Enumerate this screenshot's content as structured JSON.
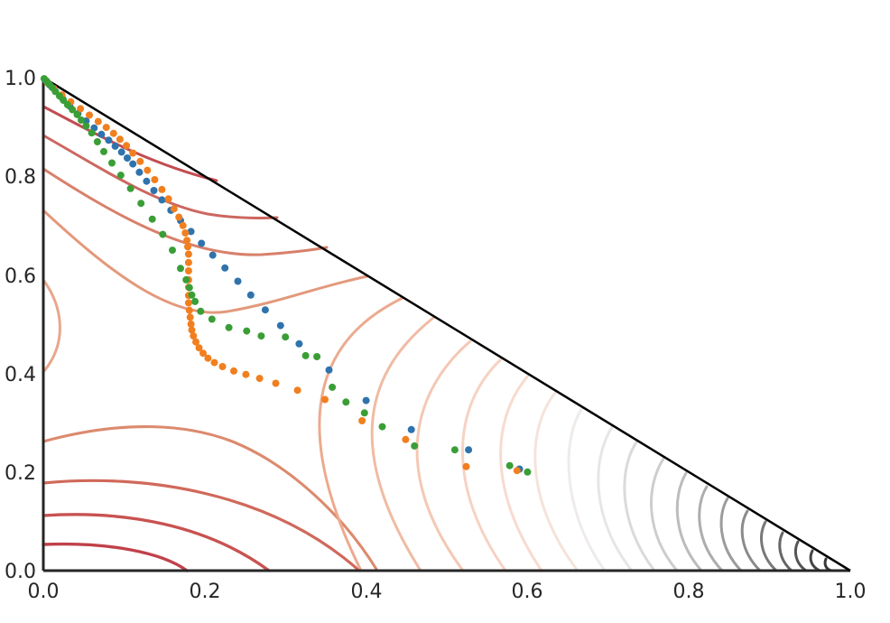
{
  "chart_data": {
    "type": "scatter",
    "title": "",
    "xlabel": "",
    "ylabel": "",
    "xlim": [
      0.0,
      1.0
    ],
    "ylim": [
      0.0,
      1.0
    ],
    "grid": false,
    "legend": "none",
    "x_ticks": [
      "0.0",
      "0.2",
      "0.4",
      "0.6",
      "0.8",
      "1.0"
    ],
    "y_ticks": [
      "0.0",
      "0.2",
      "0.4",
      "0.6",
      "0.8",
      "1.0"
    ],
    "simplex_boundary": [
      [
        0.0,
        0.0
      ],
      [
        1.0,
        0.0
      ],
      [
        0.0,
        1.0
      ]
    ],
    "series": [
      {
        "color": "#2f73ad",
        "points": [
          [
            0.003,
            0.994
          ],
          [
            0.008,
            0.985
          ],
          [
            0.015,
            0.972
          ],
          [
            0.024,
            0.957
          ],
          [
            0.033,
            0.942
          ],
          [
            0.043,
            0.927
          ],
          [
            0.053,
            0.912
          ],
          [
            0.063,
            0.898
          ],
          [
            0.072,
            0.885
          ],
          [
            0.081,
            0.873
          ],
          [
            0.089,
            0.861
          ],
          [
            0.097,
            0.849
          ],
          [
            0.104,
            0.837
          ],
          [
            0.111,
            0.825
          ],
          [
            0.119,
            0.808
          ],
          [
            0.128,
            0.79
          ],
          [
            0.137,
            0.771
          ],
          [
            0.147,
            0.752
          ],
          [
            0.158,
            0.731
          ],
          [
            0.17,
            0.71
          ],
          [
            0.183,
            0.688
          ],
          [
            0.196,
            0.664
          ],
          [
            0.21,
            0.64
          ],
          [
            0.225,
            0.614
          ],
          [
            0.241,
            0.587
          ],
          [
            0.257,
            0.559
          ],
          [
            0.275,
            0.529
          ],
          [
            0.294,
            0.497
          ],
          [
            0.317,
            0.46
          ],
          [
            0.354,
            0.407
          ],
          [
            0.4,
            0.345
          ],
          [
            0.456,
            0.286
          ],
          [
            0.527,
            0.245
          ],
          [
            0.59,
            0.206
          ]
        ]
      },
      {
        "color": "#f17f1f",
        "points": [
          [
            0.005,
            0.99
          ],
          [
            0.013,
            0.978
          ],
          [
            0.023,
            0.965
          ],
          [
            0.034,
            0.951
          ],
          [
            0.046,
            0.937
          ],
          [
            0.057,
            0.924
          ],
          [
            0.068,
            0.911
          ],
          [
            0.078,
            0.899
          ],
          [
            0.087,
            0.887
          ],
          [
            0.095,
            0.875
          ],
          [
            0.103,
            0.862
          ],
          [
            0.111,
            0.847
          ],
          [
            0.12,
            0.83
          ],
          [
            0.129,
            0.812
          ],
          [
            0.138,
            0.793
          ],
          [
            0.147,
            0.773
          ],
          [
            0.155,
            0.754
          ],
          [
            0.162,
            0.734
          ],
          [
            0.168,
            0.717
          ],
          [
            0.173,
            0.7
          ],
          [
            0.176,
            0.685
          ],
          [
            0.178,
            0.67
          ],
          [
            0.179,
            0.657
          ],
          [
            0.18,
            0.642
          ],
          [
            0.18,
            0.625
          ],
          [
            0.18,
            0.608
          ],
          [
            0.18,
            0.59
          ],
          [
            0.18,
            0.575
          ],
          [
            0.18,
            0.558
          ],
          [
            0.18,
            0.543
          ],
          [
            0.181,
            0.528
          ],
          [
            0.182,
            0.514
          ],
          [
            0.183,
            0.5
          ],
          [
            0.184,
            0.488
          ],
          [
            0.186,
            0.476
          ],
          [
            0.189,
            0.464
          ],
          [
            0.193,
            0.452
          ],
          [
            0.198,
            0.441
          ],
          [
            0.204,
            0.431
          ],
          [
            0.212,
            0.422
          ],
          [
            0.222,
            0.414
          ],
          [
            0.236,
            0.405
          ],
          [
            0.251,
            0.398
          ],
          [
            0.268,
            0.39
          ],
          [
            0.288,
            0.38
          ],
          [
            0.315,
            0.366
          ],
          [
            0.349,
            0.347
          ],
          [
            0.395,
            0.304
          ],
          [
            0.449,
            0.266
          ],
          [
            0.524,
            0.211
          ],
          [
            0.587,
            0.203
          ]
        ]
      },
      {
        "color": "#3a9e36",
        "points": [
          [
            0.001,
            0.998
          ],
          [
            0.004,
            0.993
          ],
          [
            0.007,
            0.987
          ],
          [
            0.011,
            0.98
          ],
          [
            0.015,
            0.972
          ],
          [
            0.02,
            0.963
          ],
          [
            0.025,
            0.954
          ],
          [
            0.03,
            0.945
          ],
          [
            0.036,
            0.935
          ],
          [
            0.042,
            0.925
          ],
          [
            0.047,
            0.914
          ],
          [
            0.053,
            0.902
          ],
          [
            0.06,
            0.888
          ],
          [
            0.067,
            0.87
          ],
          [
            0.075,
            0.85
          ],
          [
            0.085,
            0.827
          ],
          [
            0.096,
            0.802
          ],
          [
            0.108,
            0.775
          ],
          [
            0.121,
            0.745
          ],
          [
            0.135,
            0.713
          ],
          [
            0.148,
            0.682
          ],
          [
            0.16,
            0.65
          ],
          [
            0.17,
            0.613
          ],
          [
            0.177,
            0.59
          ],
          [
            0.181,
            0.574
          ],
          [
            0.184,
            0.559
          ],
          [
            0.188,
            0.546
          ],
          [
            0.195,
            0.526
          ],
          [
            0.209,
            0.51
          ],
          [
            0.23,
            0.493
          ],
          [
            0.252,
            0.486
          ],
          [
            0.27,
            0.476
          ],
          [
            0.3,
            0.474
          ],
          [
            0.325,
            0.436
          ],
          [
            0.339,
            0.434
          ],
          [
            0.358,
            0.372
          ],
          [
            0.375,
            0.342
          ],
          [
            0.398,
            0.32
          ],
          [
            0.42,
            0.292
          ],
          [
            0.46,
            0.253
          ],
          [
            0.51,
            0.245
          ],
          [
            0.578,
            0.213
          ],
          [
            0.6,
            0.2
          ]
        ]
      }
    ]
  }
}
